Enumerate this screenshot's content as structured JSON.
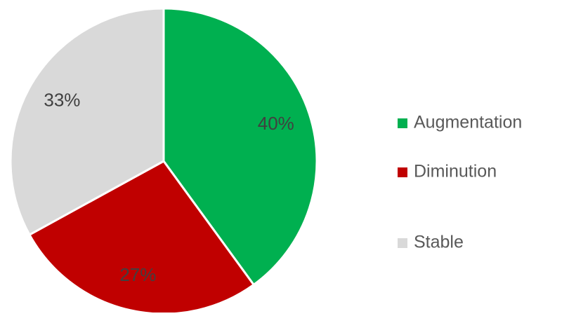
{
  "chart_data": {
    "type": "pie",
    "categories": [
      "Augmentation",
      "Diminution",
      "Stable"
    ],
    "values": [
      40,
      27,
      33
    ],
    "value_labels": [
      "40%",
      "27%",
      "33%"
    ],
    "colors": [
      "#00b050",
      "#c00000",
      "#d9d9d9"
    ],
    "legend": "right"
  }
}
